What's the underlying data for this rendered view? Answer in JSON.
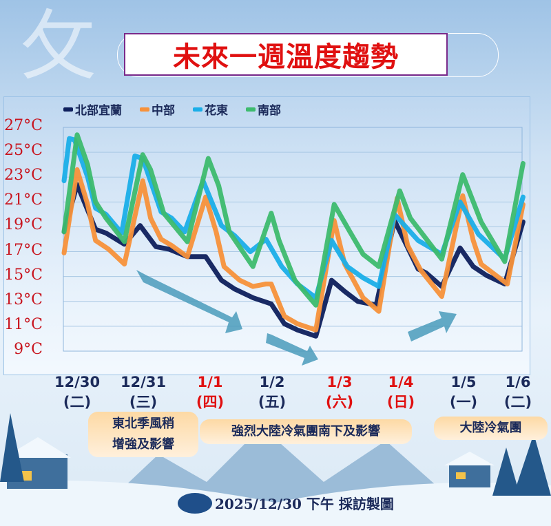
{
  "title": "未來一週溫度趨勢",
  "chart_data": {
    "type": "line",
    "title": "未來一週溫度趨勢",
    "yunit": "°C",
    "ylim": [
      9,
      27
    ],
    "yticks": [
      "27°C",
      "25°C",
      "23°C",
      "21°C",
      "19°C",
      "17°C",
      "15°C",
      "13°C",
      "11°C",
      "9°C"
    ],
    "grid": true,
    "legend": "top",
    "xticks": [
      {
        "date": "12/30",
        "weekday": "(二)",
        "holiday": false
      },
      {
        "date": "12/31",
        "weekday": "(三)",
        "holiday": false
      },
      {
        "date": "1/1",
        "weekday": "(四)",
        "holiday": true
      },
      {
        "date": "1/2",
        "weekday": "(五)",
        "holiday": false
      },
      {
        "date": "1/3",
        "weekday": "(六)",
        "holiday": true
      },
      {
        "date": "1/4",
        "weekday": "(日)",
        "holiday": true
      },
      {
        "date": "1/5",
        "weekday": "(一)",
        "holiday": false
      },
      {
        "date": "1/6",
        "weekday": "(二)",
        "holiday": false
      }
    ],
    "series": [
      {
        "name": "北部宜蘭",
        "color": "#0e1f5c",
        "points": [
          [
            "12/29 19",
            18.6
          ],
          [
            "12/30 00",
            22.4
          ],
          [
            "12/30 07",
            18.8
          ],
          [
            "12/30 11",
            18.5
          ],
          [
            "12/30 18",
            17.6
          ],
          [
            "12/31 00",
            19.1
          ],
          [
            "12/31 06",
            17.4
          ],
          [
            "12/31 11",
            17.2
          ],
          [
            "12/31 18",
            16.6
          ],
          [
            "1/1 01",
            16.6
          ],
          [
            "1/1 07",
            14.7
          ],
          [
            "1/1 12",
            14.0
          ],
          [
            "1/1 19",
            13.3
          ],
          [
            "1/2 02",
            12.8
          ],
          [
            "1/2 07",
            11.2
          ],
          [
            "1/2 12",
            10.7
          ],
          [
            "1/2 19",
            10.2
          ],
          [
            "1/3 01",
            14.7
          ],
          [
            "1/3 06",
            13.8
          ],
          [
            "1/3 11",
            13.0
          ],
          [
            "1/3 18",
            12.7
          ],
          [
            "1/4 01",
            19.5
          ],
          [
            "1/4 10",
            15.6
          ],
          [
            "1/4 13",
            15.3
          ],
          [
            "1/4 19",
            14.2
          ],
          [
            "1/5 02",
            17.3
          ],
          [
            "1/5 07",
            15.8
          ],
          [
            "1/5 12",
            15.1
          ],
          [
            "1/5 19",
            14.4
          ],
          [
            "1/6 02",
            19.4
          ]
        ]
      },
      {
        "name": "中部",
        "color": "#f7913a",
        "points": [
          [
            "12/29 19",
            16.9
          ],
          [
            "12/30 00",
            23.6
          ],
          [
            "12/30 04",
            20.8
          ],
          [
            "12/30 07",
            17.9
          ],
          [
            "12/30 12",
            17.2
          ],
          [
            "12/30 18",
            16.0
          ],
          [
            "12/31 01",
            22.7
          ],
          [
            "12/31 04",
            19.7
          ],
          [
            "12/31 08",
            18.0
          ],
          [
            "12/31 12",
            17.5
          ],
          [
            "12/31 18",
            16.6
          ],
          [
            "1/1 01",
            21.4
          ],
          [
            "1/1 05",
            18.6
          ],
          [
            "1/1 08",
            15.8
          ],
          [
            "1/1 14",
            14.7
          ],
          [
            "1/1 19",
            14.2
          ],
          [
            "1/2 00",
            14.4
          ],
          [
            "1/2 02",
            14.4
          ],
          [
            "1/2 07",
            11.8
          ],
          [
            "1/2 12",
            11.2
          ],
          [
            "1/2 19",
            10.7
          ],
          [
            "1/3 02",
            19.5
          ],
          [
            "1/3 06",
            16.0
          ],
          [
            "1/3 13",
            13.3
          ],
          [
            "1/3 19",
            12.2
          ],
          [
            "1/4 02",
            21.3
          ],
          [
            "1/4 06",
            17.5
          ],
          [
            "1/4 11",
            15.5
          ],
          [
            "1/4 19",
            13.4
          ],
          [
            "1/5 03",
            21.5
          ],
          [
            "1/5 07",
            17.9
          ],
          [
            "1/5 10",
            16.0
          ],
          [
            "1/5 20",
            14.4
          ],
          [
            "1/6 02",
            20.8
          ]
        ]
      },
      {
        "name": "花東",
        "color": "#1aaee8",
        "points": [
          [
            "12/29 19",
            22.7
          ],
          [
            "12/29 21",
            26.1
          ],
          [
            "12/29 23",
            26.0
          ],
          [
            "12/30 04",
            23.0
          ],
          [
            "12/30 07",
            20.5
          ],
          [
            "12/30 11",
            20.0
          ],
          [
            "12/30 17",
            18.5
          ],
          [
            "12/30 22",
            24.7
          ],
          [
            "12/31 01",
            24.5
          ],
          [
            "12/31 08",
            20.2
          ],
          [
            "12/31 12",
            19.7
          ],
          [
            "12/31 17",
            18.6
          ],
          [
            "1/1 00",
            22.7
          ],
          [
            "1/1 07",
            19.1
          ],
          [
            "1/1 12",
            18.3
          ],
          [
            "1/1 18",
            17.0
          ],
          [
            "1/2 00",
            18.0
          ],
          [
            "1/2 06",
            15.8
          ],
          [
            "1/2 12",
            14.4
          ],
          [
            "1/2 19",
            13.3
          ],
          [
            "1/3 01",
            17.9
          ],
          [
            "1/3 07",
            15.8
          ],
          [
            "1/3 13",
            14.9
          ],
          [
            "1/3 19",
            14.2
          ],
          [
            "1/4 01",
            20.0
          ],
          [
            "1/4 10",
            17.9
          ],
          [
            "1/4 19",
            16.8
          ],
          [
            "1/5 02",
            21.0
          ],
          [
            "1/5 09",
            18.4
          ],
          [
            "1/5 19",
            16.4
          ],
          [
            "1/6 02",
            21.4
          ]
        ]
      },
      {
        "name": "南部",
        "color": "#3dbb6e",
        "points": [
          [
            "12/29 19",
            18.6
          ],
          [
            "12/30 00",
            26.4
          ],
          [
            "12/30 04",
            24.0
          ],
          [
            "12/30 07",
            21.0
          ],
          [
            "12/30 11",
            19.7
          ],
          [
            "12/30 18",
            17.8
          ],
          [
            "12/31 01",
            24.8
          ],
          [
            "12/31 04",
            23.6
          ],
          [
            "12/31 09",
            20.1
          ],
          [
            "12/31 18",
            17.8
          ],
          [
            "1/1 02",
            24.5
          ],
          [
            "1/1 06",
            22.3
          ],
          [
            "1/1 10",
            18.6
          ],
          [
            "1/1 19",
            15.8
          ],
          [
            "1/2 02",
            20.1
          ],
          [
            "1/2 05",
            17.9
          ],
          [
            "1/2 11",
            14.7
          ],
          [
            "1/2 19",
            12.7
          ],
          [
            "1/3 02",
            20.8
          ],
          [
            "1/3 08",
            18.6
          ],
          [
            "1/3 13",
            16.8
          ],
          [
            "1/3 19",
            15.8
          ],
          [
            "1/4 03",
            21.9
          ],
          [
            "1/4 07",
            19.7
          ],
          [
            "1/4 19",
            16.4
          ],
          [
            "1/5 03",
            23.2
          ],
          [
            "1/5 10",
            19.4
          ],
          [
            "1/5 19",
            16.2
          ],
          [
            "1/6 02",
            24.1
          ]
        ]
      }
    ]
  },
  "notes": [
    {
      "line1": "東北季風稍",
      "line2": "增強及影響"
    },
    {
      "line1": "強烈大陸冷氣團南下及影響"
    },
    {
      "line1": "大陸冷氣團"
    }
  ],
  "footer": {
    "date": "2025/12/30",
    "text": " 下午 採訪製圖"
  },
  "colors": {
    "holiday": "#e01010",
    "weekday": "#1b2a5a",
    "title": "#e01010",
    "arrow": "#3b8fb0"
  }
}
